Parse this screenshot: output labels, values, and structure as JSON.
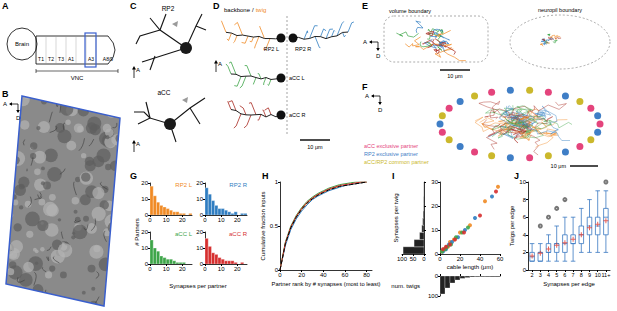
{
  "panel_labels": [
    "A",
    "B",
    "C",
    "D",
    "E",
    "F",
    "G",
    "H",
    "I",
    "J"
  ],
  "diagrams": {
    "A": {
      "brain": "Brain",
      "vnc": "VNC",
      "segments": [
        "T1",
        "T2",
        "T3",
        "A1",
        "A3",
        "A8/9"
      ],
      "color": "#3a5fcd"
    },
    "B": {
      "compass": [
        "A",
        "D"
      ],
      "color": "#3a5fcd"
    },
    "C": {
      "neurons": [
        "RP2",
        "aCC"
      ],
      "anterior": "A"
    },
    "D": {
      "legend": [
        {
          "label": "backbone",
          "color": "#000000"
        },
        {
          "label": "/",
          "color": "#000000"
        },
        {
          "label": "twig",
          "color": "#f08a24"
        }
      ],
      "neurons": [
        {
          "label": "RP2 L",
          "color": "#f08a24"
        },
        {
          "label": "RP2 R",
          "color": "#2f7dc1"
        },
        {
          "label": "aCC L",
          "color": "#3da548"
        },
        {
          "label": "aCC R",
          "color": "#a8281f"
        }
      ],
      "anterior": "A",
      "scale": "10 μm"
    },
    "E": {
      "labels": [
        "volume boundary",
        "neuropil boundary"
      ],
      "compass": [
        "A",
        "D"
      ],
      "scale": "10 μm"
    },
    "F": {
      "legend": [
        {
          "label": "aCC exclusive partner",
          "color": "#e4447c"
        },
        {
          "label": "RP2 exclusive partner",
          "color": "#3f7ec6"
        },
        {
          "label": "aCC/RP2 common partner",
          "color": "#cbb82c"
        }
      ],
      "compass": [
        "A",
        "D"
      ],
      "scale": "10 μm"
    }
  },
  "chart_data": [
    {
      "type": "histogram",
      "xlabel": "Synapses per partner",
      "ylabel": "# Partners",
      "bins": [
        0,
        2,
        4,
        6,
        8,
        10,
        12,
        14,
        16,
        18,
        20,
        22,
        24,
        26
      ],
      "xlim": [
        0,
        26
      ],
      "xticks": [
        0,
        10,
        20
      ],
      "ylim": [
        0,
        20
      ],
      "yticks": [
        0,
        10,
        20
      ],
      "series": [
        {
          "name": "RP2 L",
          "color": "#f08a24",
          "counts": [
            18,
            12,
            8,
            6,
            5,
            4,
            3,
            2,
            2,
            1,
            1,
            0,
            1
          ]
        },
        {
          "name": "RP2 R",
          "color": "#2f7dc1",
          "counts": [
            17,
            13,
            9,
            6,
            4,
            4,
            3,
            2,
            1,
            2,
            0,
            1,
            1
          ]
        },
        {
          "name": "aCC L",
          "color": "#3da548",
          "counts": [
            15,
            10,
            8,
            5,
            4,
            3,
            3,
            2,
            1,
            1,
            1,
            0,
            0
          ]
        },
        {
          "name": "aCC R",
          "color": "#d62f2f",
          "counts": [
            16,
            11,
            7,
            6,
            4,
            3,
            2,
            2,
            2,
            1,
            0,
            1,
            0
          ]
        }
      ]
    },
    {
      "type": "line",
      "xlabel": "Partner rank by # synapses (most to least)",
      "ylabel": "Cumulative fraction inputs",
      "x": [
        0,
        5,
        10,
        15,
        20,
        25,
        30,
        35,
        40,
        45,
        50,
        55,
        60,
        65,
        70,
        75,
        80
      ],
      "xlim": [
        0,
        85
      ],
      "xticks": [
        0,
        20,
        40,
        60,
        80
      ],
      "ylim": [
        0,
        1
      ],
      "yticks": [
        0,
        0.5,
        1
      ],
      "series": [
        {
          "color": "#f08a24",
          "values": [
            0,
            0.3,
            0.48,
            0.6,
            0.69,
            0.76,
            0.81,
            0.85,
            0.88,
            0.91,
            0.93,
            0.95,
            0.96,
            0.97,
            0.98,
            0.99,
            1
          ]
        },
        {
          "color": "#2f7dc1",
          "values": [
            0,
            0.28,
            0.46,
            0.58,
            0.67,
            0.74,
            0.8,
            0.84,
            0.87,
            0.9,
            0.92,
            0.94,
            0.96,
            0.97,
            0.98,
            0.99,
            1
          ]
        },
        {
          "color": "#3da548",
          "values": [
            0,
            0.32,
            0.5,
            0.62,
            0.71,
            0.78,
            0.83,
            0.87,
            0.9,
            0.93,
            0.95,
            0.97,
            0.98,
            0.99,
            1,
            1,
            1
          ]
        },
        {
          "color": "#d62f2f",
          "values": [
            0,
            0.31,
            0.49,
            0.61,
            0.7,
            0.77,
            0.82,
            0.86,
            0.89,
            0.92,
            0.94,
            0.96,
            0.97,
            0.98,
            0.99,
            1,
            1
          ]
        },
        {
          "color": "#000000",
          "line_style": "dashed",
          "values": [
            0,
            0.3,
            0.48,
            0.6,
            0.69,
            0.76,
            0.81,
            0.85,
            0.88,
            0.91,
            0.93,
            0.95,
            0.96,
            0.97,
            0.98,
            0.99,
            1
          ]
        }
      ]
    },
    {
      "type": "scatter",
      "xlabel": "cable length (μm)",
      "ylabel": "Synapses per twig",
      "xlim": [
        0,
        60
      ],
      "xticks": [
        0,
        20,
        40,
        60
      ],
      "ylim": [
        0,
        30
      ],
      "yticks": [
        0,
        10,
        20,
        30
      ],
      "series": [
        {
          "color": "#f08a24",
          "values": [
            [
              2,
              1
            ],
            [
              4,
              2
            ],
            [
              5,
              2
            ],
            [
              8,
              3
            ],
            [
              10,
              5
            ],
            [
              14,
              6
            ],
            [
              20,
              9
            ],
            [
              30,
              12
            ],
            [
              45,
              22
            ],
            [
              58,
              28
            ]
          ]
        },
        {
          "color": "#2f7dc1",
          "values": [
            [
              3,
              1
            ],
            [
              6,
              2
            ],
            [
              9,
              4
            ],
            [
              12,
              5
            ],
            [
              18,
              7
            ],
            [
              25,
              10
            ],
            [
              35,
              15
            ],
            [
              52,
              24
            ]
          ]
        },
        {
          "color": "#3da548",
          "values": [
            [
              2,
              1
            ],
            [
              5,
              2
            ],
            [
              7,
              3
            ],
            [
              11,
              4
            ],
            [
              16,
              7
            ],
            [
              22,
              9
            ],
            [
              28,
              11
            ]
          ]
        },
        {
          "color": "#d62f2f",
          "values": [
            [
              3,
              2
            ],
            [
              6,
              3
            ],
            [
              10,
              4
            ],
            [
              15,
              6
            ],
            [
              24,
              9
            ],
            [
              40,
              16
            ],
            [
              56,
              26
            ]
          ]
        }
      ],
      "y_hist": {
        "color": "#222222",
        "bins": [
          0,
          3,
          6,
          9,
          12,
          15,
          18,
          21,
          24,
          27,
          30
        ],
        "counts": [
          95,
          45,
          20,
          10,
          6,
          4,
          2,
          2,
          1,
          1
        ],
        "xlim": [
          0,
          100
        ],
        "xticks": [
          0,
          50,
          100
        ]
      },
      "x_hist": {
        "color": "#222222",
        "ylabel": "num. twigs",
        "bins": [
          0,
          5,
          10,
          15,
          20,
          25,
          30,
          35,
          40,
          45,
          50,
          55,
          60
        ],
        "counts": [
          90,
          60,
          35,
          20,
          12,
          8,
          5,
          3,
          2,
          2,
          1,
          1
        ],
        "ylim": [
          0,
          100
        ],
        "yticks": [
          0,
          100
        ]
      }
    },
    {
      "type": "boxplot",
      "xlabel": "Synapses per edge",
      "ylabel": "Twigs per edge",
      "categories": [
        "2",
        "3",
        "4",
        "5",
        "6",
        "7",
        "8",
        "9",
        "10",
        "11+"
      ],
      "ylim": [
        0,
        10
      ],
      "yticks": [
        0,
        2,
        4,
        6,
        8,
        10
      ],
      "series": [
        {
          "type": "boxplot",
          "color": "#3a78c2",
          "values": [
            [
              1,
              1,
              1.5,
              2,
              3
            ],
            [
              1,
              1,
              2,
              2,
              3
            ],
            [
              1,
              2,
              2,
              3,
              4
            ],
            [
              1,
              2,
              3,
              3,
              5
            ],
            [
              1,
              2,
              3,
              4,
              6
            ],
            [
              1,
              3,
              3,
              4,
              6
            ],
            [
              2,
              3,
              4,
              5,
              7
            ],
            [
              2,
              4,
              5,
              6,
              8
            ],
            [
              2,
              4,
              5,
              6,
              9
            ],
            [
              2,
              4,
              6,
              7,
              9
            ]
          ]
        },
        {
          "type": "scatter",
          "marker": "cross",
          "color": "#e03a2f",
          "values": [
            1.6,
            1.9,
            2.4,
            2.8,
            3.1,
            3.5,
            4,
            4.8,
            5.2,
            5.6
          ]
        },
        {
          "type": "scatter",
          "marker": "circle",
          "color": "#555555",
          "values": [
            [
              "3",
              5
            ],
            [
              "4",
              6
            ],
            [
              "5",
              7
            ],
            [
              "6",
              8
            ],
            [
              "11+",
              10
            ]
          ]
        }
      ]
    }
  ]
}
